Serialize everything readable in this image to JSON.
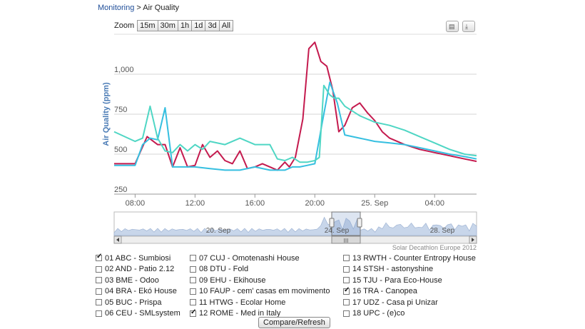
{
  "breadcrumb": {
    "root": "Monitoring",
    "separator": " > ",
    "current": "Air Quality"
  },
  "zoom": {
    "label": "Zoom",
    "buttons": [
      "15m",
      "30m",
      "1h",
      "1d",
      "3d",
      "All"
    ]
  },
  "tools": {
    "print_icon": "printer-icon",
    "export_icon": "download-icon"
  },
  "credit": "Solar Decathlon Europe 2012",
  "compare_label": "Compare/Refresh",
  "colors": {
    "red": "#c41a4e",
    "cyan": "#35bfe0",
    "teal": "#4fd6c4",
    "navigator": "#c8d6ea"
  },
  "navigator": {
    "labels": [
      "20. Sep",
      "24. Sep",
      "28. Sep"
    ],
    "scroll_handle": "III"
  },
  "chart_data": {
    "type": "line",
    "ylabel": "Air Quality (ppm)",
    "xlabel": "",
    "ylim": [
      250,
      1250
    ],
    "yticks": [
      250,
      500,
      750,
      1000
    ],
    "ytick_labels": [
      "250",
      "500",
      "750",
      "1,000"
    ],
    "xlim": [
      6.6,
      30.8
    ],
    "xticks": [
      8,
      12,
      16,
      20,
      24,
      28
    ],
    "xtick_labels": [
      "08:00",
      "12:00",
      "16:00",
      "20:00",
      "25. Sep",
      "04:00"
    ],
    "series": [
      {
        "name": "01 ABC - Sumbiosi",
        "color": "#c41a4e",
        "x": [
          6.6,
          8,
          8.8,
          9.5,
          10,
          10.5,
          11,
          11.5,
          12,
          12.5,
          13,
          13.5,
          14,
          14.5,
          15,
          15.5,
          16,
          16.5,
          17,
          17.5,
          18,
          18.3,
          18.7,
          19.2,
          19.6,
          20,
          20.4,
          20.8,
          21.2,
          21.6,
          22,
          22.5,
          23,
          23.5,
          24,
          24.5,
          25,
          26,
          27,
          28,
          29,
          30,
          30.8
        ],
        "y": [
          440,
          440,
          610,
          560,
          560,
          420,
          540,
          420,
          430,
          560,
          480,
          520,
          460,
          440,
          520,
          410,
          420,
          440,
          420,
          400,
          450,
          420,
          480,
          720,
          1160,
          1200,
          1080,
          1050,
          900,
          640,
          680,
          790,
          820,
          760,
          710,
          640,
          600,
          560,
          530,
          510,
          490,
          470,
          455
        ]
      },
      {
        "name": "12 ROME - Med in Italy",
        "color": "#35bfe0",
        "x": [
          6.6,
          8,
          8.5,
          9,
          9.5,
          10,
          10.5,
          11,
          12,
          13,
          14,
          15,
          16,
          17,
          18,
          18.5,
          19,
          19.5,
          20,
          20.5,
          21,
          21.5,
          22,
          23,
          24,
          25,
          26,
          27,
          28,
          29,
          30,
          30.8
        ],
        "y": [
          430,
          430,
          560,
          600,
          590,
          790,
          420,
          420,
          420,
          410,
          400,
          400,
          420,
          400,
          400,
          420,
          420,
          430,
          440,
          700,
          950,
          820,
          620,
          600,
          580,
          570,
          560,
          540,
          520,
          500,
          485,
          470
        ]
      },
      {
        "name": "16 TRA - Canopea",
        "color": "#4fd6c4",
        "x": [
          6.6,
          8,
          8.5,
          9,
          9.5,
          10,
          10.5,
          11,
          11.5,
          12,
          12.5,
          13,
          14,
          15,
          16,
          17,
          17.5,
          18,
          18.5,
          19,
          19.5,
          20,
          20.3,
          20.6,
          21,
          21.3,
          21.6,
          22,
          23,
          24,
          25,
          26,
          27,
          28,
          29,
          30,
          30.8
        ],
        "y": [
          640,
          580,
          600,
          800,
          600,
          520,
          510,
          560,
          520,
          560,
          530,
          580,
          560,
          600,
          560,
          560,
          470,
          460,
          480,
          450,
          450,
          460,
          480,
          930,
          870,
          850,
          850,
          800,
          740,
          700,
          680,
          650,
          610,
          570,
          530,
          500,
          490
        ]
      }
    ]
  },
  "teams": [
    [
      {
        "label": "01 ABC - Sumbiosi",
        "checked": true
      },
      {
        "label": "02 AND - Patio 2.12",
        "checked": false
      },
      {
        "label": "03 BME - Odoo",
        "checked": false
      },
      {
        "label": "04 BRA - Ekó House",
        "checked": false
      },
      {
        "label": "05 BUC - Prispa",
        "checked": false
      },
      {
        "label": "06 CEU - SMLsystem",
        "checked": false
      }
    ],
    [
      {
        "label": "07 CUJ - Omotenashi House",
        "checked": false
      },
      {
        "label": "08 DTU - Fold",
        "checked": false
      },
      {
        "label": "09 EHU - Ekihouse",
        "checked": false
      },
      {
        "label": "10 FAUP - cem' casas em movimento",
        "checked": false
      },
      {
        "label": "11 HTWG - Ecolar Home",
        "checked": false
      },
      {
        "label": "12 ROME - Med in Italy",
        "checked": true
      }
    ],
    [
      {
        "label": "13 RWTH - Counter Entropy House",
        "checked": false
      },
      {
        "label": "14 STSH - astonyshine",
        "checked": false
      },
      {
        "label": "15 TJU - Para Eco-House",
        "checked": false
      },
      {
        "label": "16 TRA - Canopea",
        "checked": true
      },
      {
        "label": "17 UDZ - Casa pi Unizar",
        "checked": false
      },
      {
        "label": "18 UPC - (e)co",
        "checked": false
      }
    ]
  ]
}
